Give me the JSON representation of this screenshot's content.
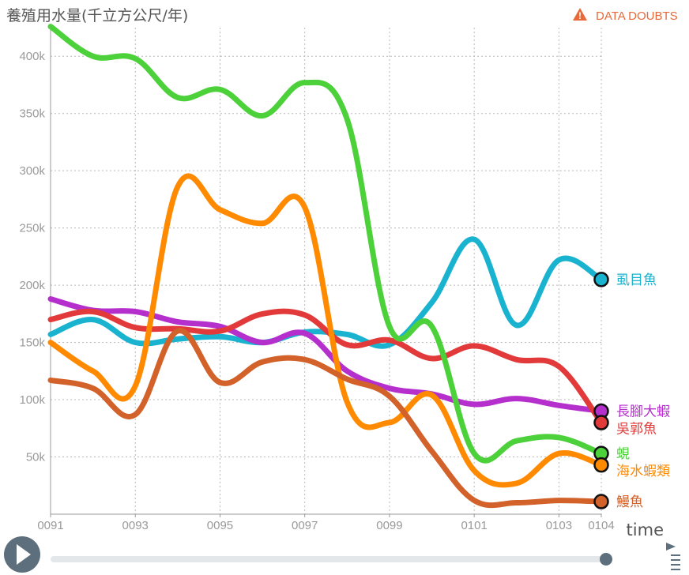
{
  "header": {
    "doubts_label": "DATA DOUBTS",
    "doubts_color": "#e8693a"
  },
  "controls": {
    "play_icon": "play-icon",
    "settings_icon": "settings-icon"
  },
  "chart_data": {
    "type": "line",
    "ylabel": "養殖用水量(千立方公尺/年)",
    "xlabel": "time",
    "x": [
      "0091",
      "0092",
      "0093",
      "0094",
      "0095",
      "0096",
      "0097",
      "0098",
      "0099",
      "0100",
      "0101",
      "0102",
      "0103",
      "0104"
    ],
    "xticks": [
      "0091",
      "0093",
      "0095",
      "0097",
      "0099",
      "0101",
      "0103",
      "0104"
    ],
    "ylim": [
      0,
      425000
    ],
    "yticks": [
      50000,
      100000,
      150000,
      200000,
      250000,
      300000,
      350000,
      400000
    ],
    "ytick_labels": [
      "50k",
      "100k",
      "150k",
      "200k",
      "250k",
      "300k",
      "350k",
      "400k"
    ],
    "grid": true,
    "series": [
      {
        "name": "虱目魚",
        "color": "#1ab3cf",
        "values": [
          157000,
          170000,
          150000,
          153000,
          155000,
          150000,
          159000,
          157000,
          148000,
          185000,
          240000,
          165000,
          222000,
          205000
        ]
      },
      {
        "name": "長腳大蝦",
        "color": "#b52fcc",
        "values": [
          188000,
          178000,
          177000,
          168000,
          164000,
          150000,
          158000,
          125000,
          110000,
          105000,
          96000,
          101000,
          95000,
          90000
        ]
      },
      {
        "name": "吳郭魚",
        "color": "#e23a3a",
        "values": [
          170000,
          177000,
          163000,
          162000,
          160000,
          175000,
          174000,
          148000,
          152000,
          136000,
          147000,
          135000,
          129000,
          80000
        ]
      },
      {
        "name": "蜆",
        "color": "#4cd13a",
        "values": [
          426000,
          400000,
          398000,
          364000,
          371000,
          348000,
          377000,
          345000,
          164000,
          164000,
          53000,
          64000,
          67000,
          53000
        ]
      },
      {
        "name": "海水蝦類",
        "color": "#ff8a00",
        "values": [
          150000,
          125000,
          112000,
          286000,
          266000,
          254000,
          268000,
          98000,
          80000,
          104000,
          38000,
          27000,
          53000,
          43000
        ]
      },
      {
        "name": "鰻魚",
        "color": "#d2612a",
        "values": [
          117000,
          110000,
          87000,
          160000,
          115000,
          133000,
          135000,
          118000,
          103000,
          55000,
          12000,
          10000,
          12000,
          11000
        ]
      }
    ]
  }
}
